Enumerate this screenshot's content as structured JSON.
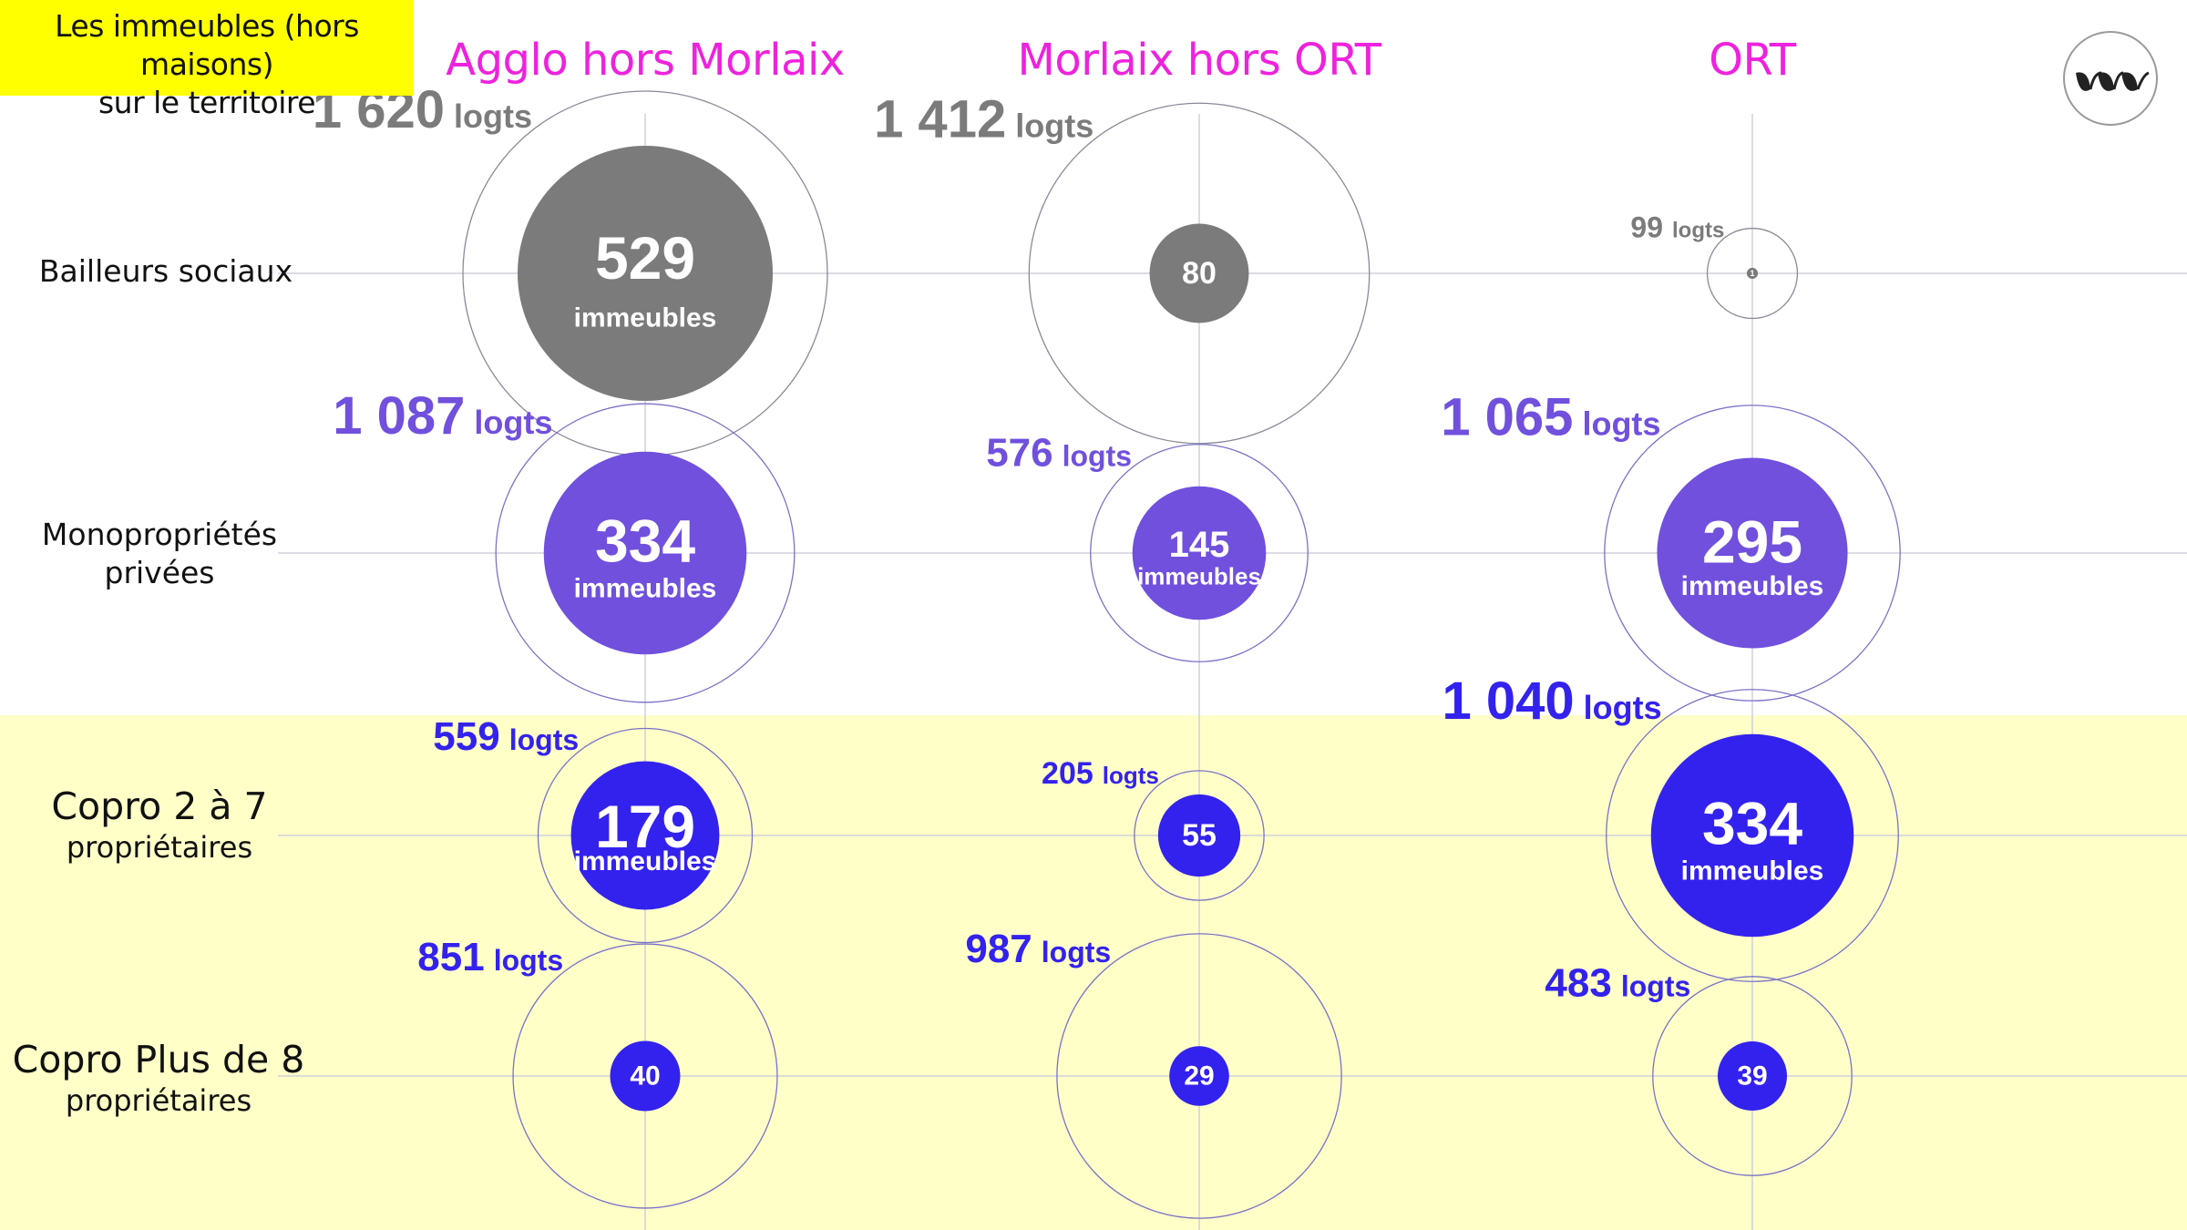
{
  "title": {
    "line1": "Les immeubles (hors maisons)",
    "line2": "sur le territoire"
  },
  "logo_icon": "wave-logo-icon",
  "colors": {
    "highlight": "#ffff00",
    "lower_band": "#ffffc8",
    "column_header": "#ee22dd",
    "bailleurs": "#7b7b7b",
    "mono": "#7050dd",
    "copro": "#3322ee"
  },
  "chart_data": {
    "type": "bubble",
    "columns": [
      "Agglo hors Morlaix",
      "Morlaix hors ORT",
      "ORT"
    ],
    "rows": [
      {
        "label_line1": "Bailleurs sociaux",
        "label_line2": "",
        "immeubles": [
          529,
          80,
          1
        ],
        "logements": [
          1620,
          1412,
          99
        ],
        "logts_labels": [
          "1 620",
          "1 412",
          "99"
        ],
        "inner_labels": [
          "529",
          "80",
          "1"
        ],
        "sub_labels": [
          "immeubles",
          "",
          ""
        ]
      },
      {
        "label_line1": "Monopropriétés",
        "label_line2": "privées",
        "immeubles": [
          334,
          145,
          295
        ],
        "logements": [
          1087,
          576,
          1065
        ],
        "logts_labels": [
          "1 087",
          "576",
          "1 065"
        ],
        "inner_labels": [
          "334",
          "145",
          "295"
        ],
        "sub_labels": [
          "immeubles",
          "immeubles",
          "immeubles"
        ]
      },
      {
        "label_line1": "Copro 2 à 7",
        "label_line2": "propriétaires",
        "immeubles": [
          179,
          55,
          334
        ],
        "logements": [
          559,
          205,
          1040
        ],
        "logts_labels": [
          "559",
          "205",
          "1 040"
        ],
        "inner_labels": [
          "179",
          "55",
          "334"
        ],
        "sub_labels": [
          "immeubles",
          "",
          "immeubles"
        ]
      },
      {
        "label_line1": "Copro Plus de 8",
        "label_line2": "propriétaires",
        "immeubles": [
          40,
          29,
          39
        ],
        "logements": [
          851,
          987,
          483
        ],
        "logts_labels": [
          "851",
          "987",
          "483"
        ],
        "inner_labels": [
          "40",
          "29",
          "39"
        ],
        "sub_labels": [
          "",
          "",
          ""
        ]
      }
    ],
    "unit_logements": "logts",
    "unit_immeubles": "immeubles"
  }
}
